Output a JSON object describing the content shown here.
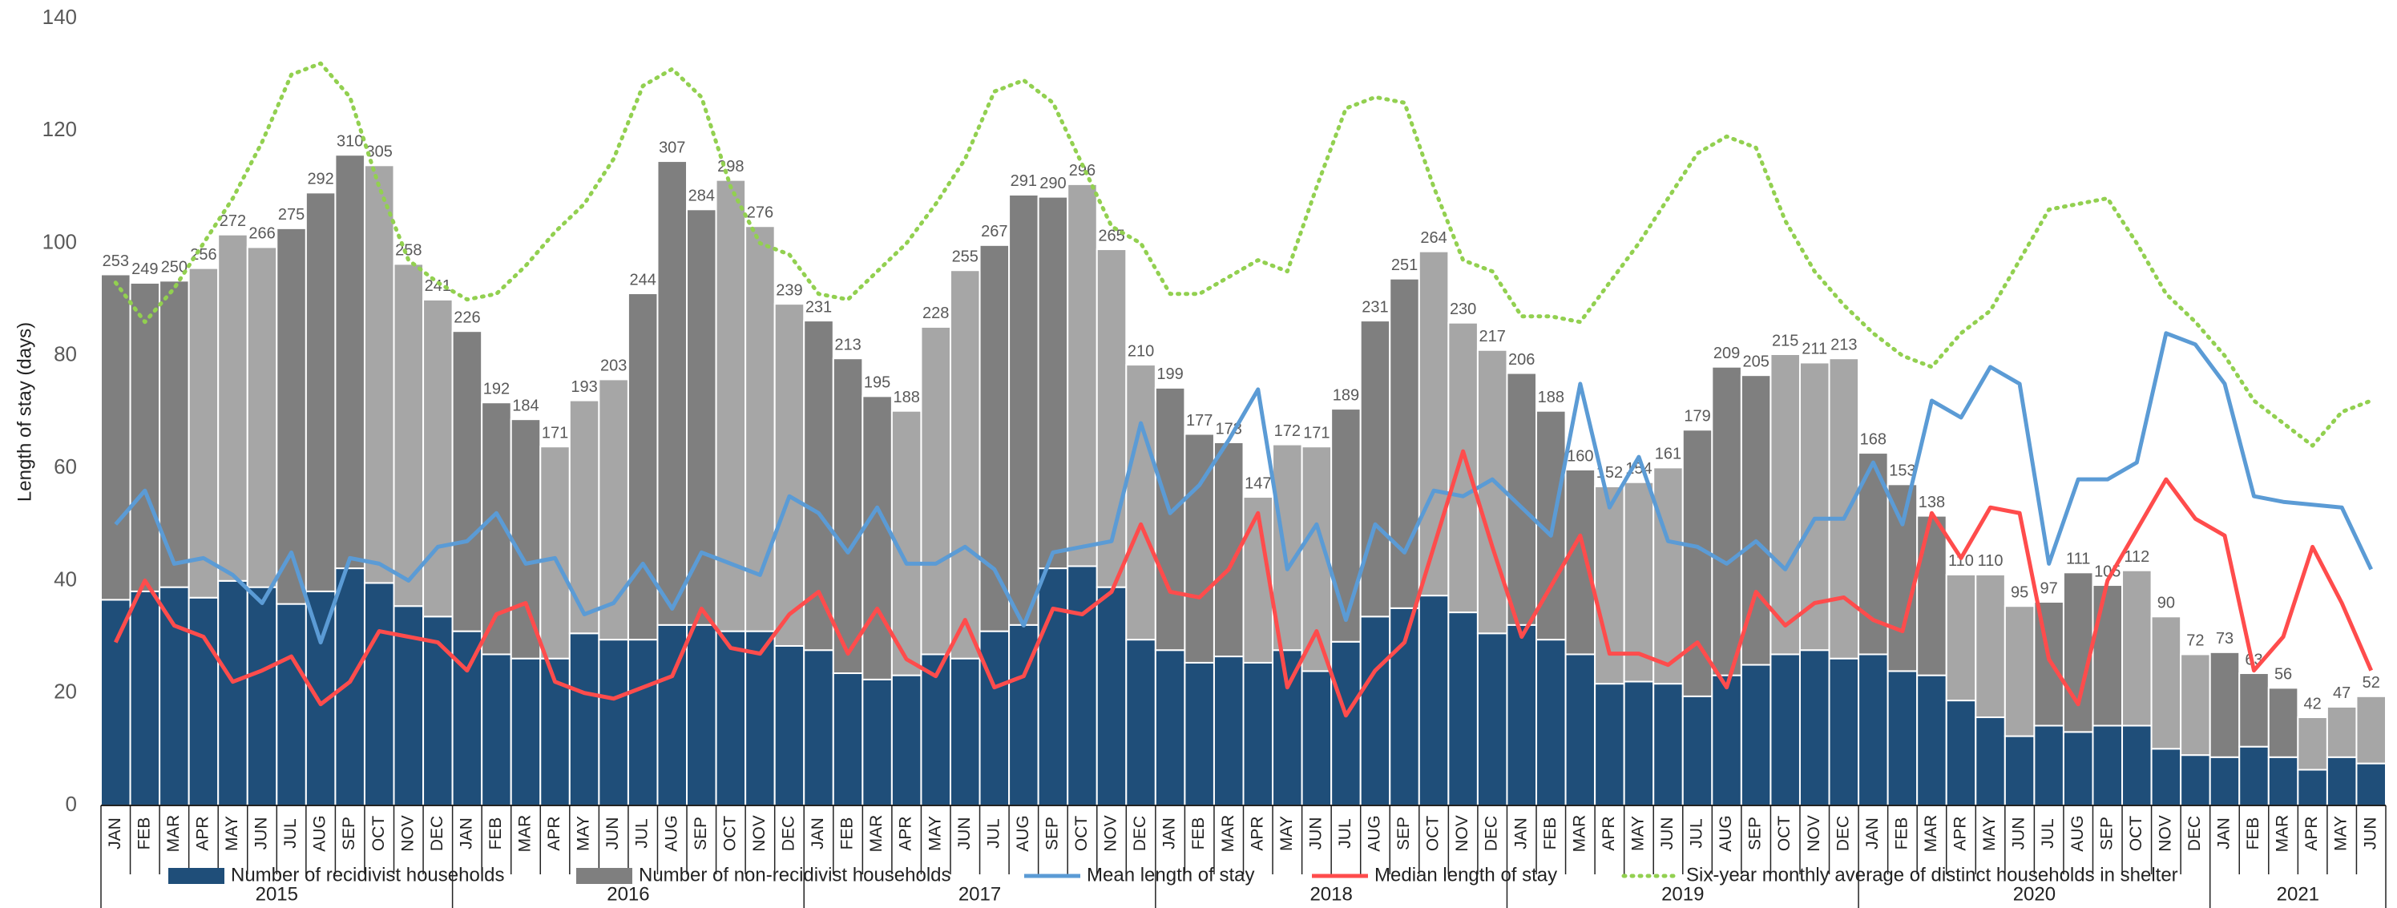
{
  "chart_data": {
    "type": "bar",
    "y_axis_label": "Length of stay (days)",
    "ylim": [
      0,
      140
    ],
    "yticks": [
      0,
      20,
      40,
      60,
      80,
      100,
      120,
      140
    ],
    "y2lim": [
      0,
      375
    ],
    "grid": false,
    "legend": "bottom",
    "years": [
      "2015",
      "2016",
      "2017",
      "2018",
      "2019",
      "2020",
      "2021"
    ],
    "categories": [
      "JAN",
      "FEB",
      "MAR",
      "APR",
      "MAY",
      "JUN",
      "JUL",
      "AUG",
      "SEP",
      "OCT",
      "NOV",
      "DEC",
      "JAN",
      "FEB",
      "MAR",
      "APR",
      "MAY",
      "JUN",
      "JUL",
      "AUG",
      "SEP",
      "OCT",
      "NOV",
      "DEC",
      "JAN",
      "FEB",
      "MAR",
      "APR",
      "MAY",
      "JUN",
      "JUL",
      "AUG",
      "SEP",
      "OCT",
      "NOV",
      "DEC",
      "JAN",
      "FEB",
      "MAR",
      "APR",
      "MAY",
      "JUN",
      "JUL",
      "AUG",
      "SEP",
      "OCT",
      "NOV",
      "DEC",
      "JAN",
      "FEB",
      "MAR",
      "APR",
      "MAY",
      "JUN",
      "JUL",
      "AUG",
      "SEP",
      "OCT",
      "NOV",
      "DEC",
      "JAN",
      "FEB",
      "MAR",
      "APR",
      "MAY",
      "JUN",
      "JUL",
      "AUG",
      "SEP",
      "OCT",
      "NOV",
      "DEC",
      "JAN",
      "FEB",
      "MAR",
      "APR",
      "MAY",
      "JUN"
    ],
    "totals": [
      253,
      249,
      250,
      256,
      272,
      266,
      275,
      292,
      310,
      305,
      258,
      241,
      226,
      192,
      184,
      171,
      193,
      203,
      244,
      307,
      284,
      298,
      276,
      239,
      231,
      213,
      195,
      188,
      228,
      255,
      267,
      291,
      290,
      296,
      265,
      210,
      199,
      177,
      173,
      147,
      172,
      171,
      189,
      231,
      251,
      264,
      230,
      217,
      206,
      188,
      160,
      152,
      154,
      161,
      179,
      209,
      205,
      215,
      211,
      213,
      168,
      153,
      138,
      110,
      110,
      95,
      97,
      111,
      105,
      112,
      90,
      72,
      73,
      63,
      56,
      42,
      47,
      52
    ],
    "series": [
      {
        "name": "Number of recidivist households",
        "type": "bar",
        "axis": "y2",
        "color": "#1f4e79",
        "values": [
          98,
          102,
          104,
          99,
          107,
          104,
          96,
          102,
          113,
          106,
          95,
          90,
          83,
          72,
          70,
          70,
          82,
          79,
          79,
          86,
          86,
          83,
          83,
          76,
          74,
          63,
          60,
          62,
          72,
          70,
          83,
          86,
          113,
          114,
          104,
          79,
          74,
          68,
          71,
          68,
          74,
          64,
          78,
          90,
          94,
          100,
          92,
          82,
          86,
          79,
          72,
          58,
          59,
          58,
          52,
          62,
          67,
          72,
          74,
          70,
          72,
          64,
          62,
          50,
          42,
          33,
          38,
          35,
          38,
          38,
          27,
          24,
          23,
          28,
          23,
          17,
          23,
          20
        ]
      },
      {
        "name": "Number of non-recidivist households",
        "type": "bar",
        "axis": "y2",
        "color": "#7f7f7f",
        "alt_color": "#a6a6a6",
        "values": [
          155,
          147,
          146,
          157,
          165,
          162,
          179,
          190,
          197,
          199,
          163,
          151,
          143,
          120,
          114,
          101,
          111,
          124,
          165,
          221,
          198,
          215,
          193,
          163,
          157,
          150,
          135,
          126,
          156,
          185,
          184,
          205,
          177,
          182,
          161,
          131,
          125,
          109,
          102,
          79,
          98,
          107,
          111,
          141,
          157,
          164,
          138,
          135,
          120,
          109,
          88,
          94,
          95,
          103,
          127,
          147,
          138,
          143,
          137,
          143,
          96,
          89,
          76,
          60,
          68,
          62,
          59,
          76,
          67,
          74,
          63,
          48,
          50,
          35,
          33,
          25,
          24,
          32
        ]
      },
      {
        "name": "Mean length of stay",
        "type": "line",
        "color": "#5b9bd5",
        "values": [
          50,
          56,
          43,
          44,
          41,
          36,
          45,
          29,
          44,
          43,
          40,
          46,
          47,
          52,
          43,
          44,
          34,
          36,
          43,
          35,
          45,
          43,
          41,
          55,
          52,
          45,
          53,
          43,
          43,
          46,
          42,
          32,
          45,
          46,
          47,
          68,
          52,
          57,
          65,
          74,
          42,
          50,
          33,
          50,
          45,
          56,
          55,
          58,
          53,
          48,
          75,
          53,
          62,
          47,
          46,
          43,
          47,
          42,
          51,
          51,
          61,
          50,
          72,
          69,
          78,
          75,
          43,
          58,
          58,
          61,
          84,
          82,
          75,
          55,
          54,
          53.5,
          53,
          42
        ]
      },
      {
        "name": "Median length of stay",
        "type": "line",
        "color": "#ff4c4c",
        "values": [
          29,
          40,
          32,
          30,
          22,
          24,
          26.5,
          18,
          22,
          31,
          30,
          29,
          24,
          34,
          36,
          22,
          20,
          19,
          21,
          23,
          35,
          28,
          27,
          34,
          38,
          27,
          35,
          26,
          23,
          33,
          21,
          23,
          35,
          34,
          38,
          50,
          38,
          37,
          42,
          52,
          21,
          31,
          16,
          24,
          29,
          46,
          63,
          46,
          30,
          39,
          48,
          27,
          27,
          25,
          29,
          21,
          38,
          32,
          36,
          37,
          33,
          31,
          52,
          44,
          53,
          52,
          26,
          18,
          40,
          49,
          58,
          51,
          48,
          24,
          30,
          46,
          36,
          24
        ]
      },
      {
        "name": "Six-year monthly average of distinct households in shelter",
        "type": "line",
        "color": "#92d050",
        "dash": "dotted",
        "values": [
          93,
          86,
          92,
          100,
          108,
          118,
          130,
          132,
          126,
          110,
          97,
          93,
          90,
          91,
          96,
          102,
          107,
          115,
          128,
          131,
          126,
          110,
          100,
          98,
          91,
          90,
          95,
          100,
          107,
          115,
          127,
          129,
          125,
          114,
          103,
          100,
          91,
          91,
          94,
          97,
          95,
          110,
          124,
          126,
          125,
          110,
          97,
          95,
          87,
          87,
          86,
          93,
          100,
          108,
          116,
          119,
          117,
          104,
          95,
          89,
          84,
          80,
          78,
          84,
          88,
          97,
          106,
          107,
          108,
          100,
          91,
          86,
          80,
          72,
          68,
          64,
          70,
          72
        ]
      }
    ]
  }
}
